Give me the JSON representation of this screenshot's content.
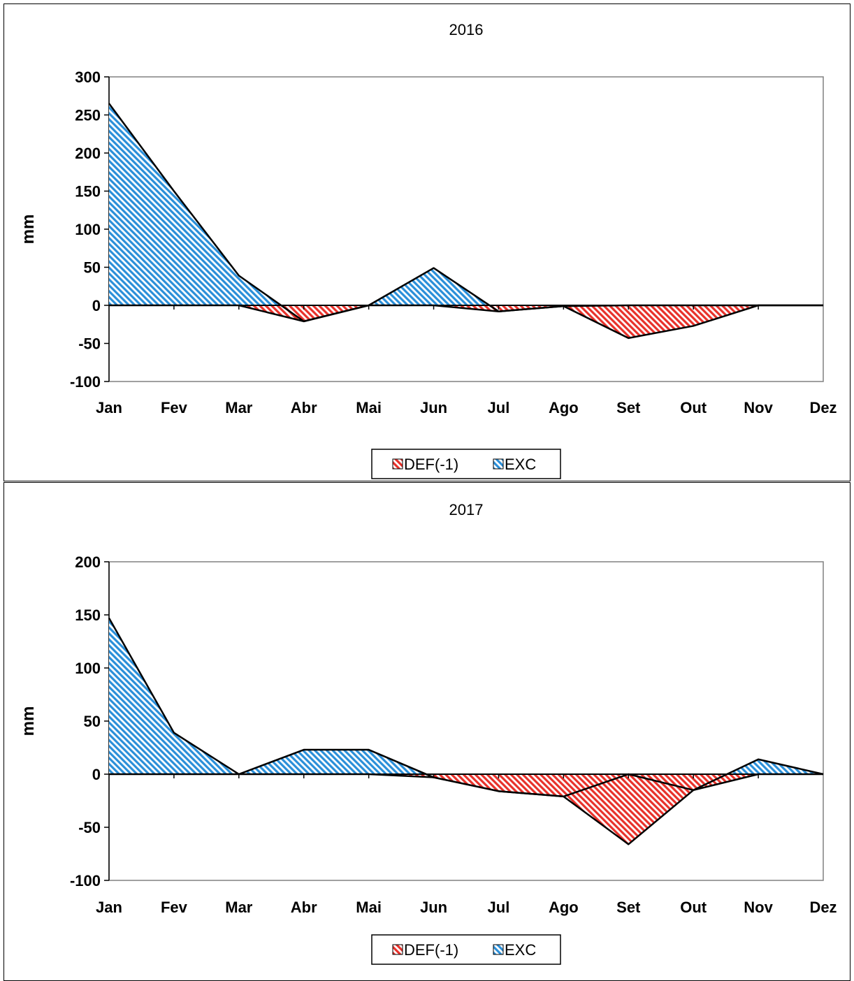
{
  "colors": {
    "def_fill": "#e8312a",
    "exc_fill": "#2a8fd9",
    "axis": "#000000",
    "plot_border": "#808080"
  },
  "chart_data": [
    {
      "type": "area",
      "title": "2016",
      "xlabel": "",
      "ylabel": "mm",
      "categories": [
        "Jan",
        "Fev",
        "Mar",
        "Abr",
        "Mai",
        "Jun",
        "Jul",
        "Ago",
        "Set",
        "Out",
        "Nov",
        "Dez"
      ],
      "ylim": [
        -100,
        300
      ],
      "yticks": [
        300,
        250,
        200,
        150,
        100,
        50,
        0,
        -50,
        -100
      ],
      "ytick_labels": [
        "300",
        "250",
        "200",
        "150",
        "100",
        "50",
        "0",
        "-50",
        "-100"
      ],
      "series": [
        {
          "name": "DEF(-1)",
          "pattern": "diagonal-hatch",
          "color": "#e8312a",
          "values": [
            0,
            0,
            0,
            -21,
            0,
            0,
            -8,
            -1,
            -43,
            -27,
            0,
            0
          ]
        },
        {
          "name": "EXC",
          "pattern": "diagonal-hatch",
          "color": "#2a8fd9",
          "values": [
            265,
            150,
            39,
            -21,
            0,
            49,
            -8,
            -1,
            0,
            0,
            0,
            0
          ]
        }
      ],
      "legend": {
        "position": "bottom",
        "items": [
          "DEF(-1)",
          "EXC"
        ]
      },
      "grid": false
    },
    {
      "type": "area",
      "title": "2017",
      "xlabel": "",
      "ylabel": "mm",
      "categories": [
        "Jan",
        "Fev",
        "Mar",
        "Abr",
        "Mai",
        "Jun",
        "Jul",
        "Ago",
        "Set",
        "Out",
        "Nov",
        "Dez"
      ],
      "ylim": [
        -100,
        200
      ],
      "yticks": [
        200,
        150,
        100,
        50,
        0,
        -50,
        -100
      ],
      "ytick_labels": [
        "200",
        "150",
        "100",
        "50",
        "0",
        "-50",
        "-100"
      ],
      "series": [
        {
          "name": "DEF(-1)",
          "pattern": "diagonal-hatch",
          "color": "#e8312a",
          "values": [
            0,
            0,
            0,
            0,
            0,
            -3,
            -16,
            -21,
            -66,
            -15,
            0,
            0
          ]
        },
        {
          "name": "EXC",
          "pattern": "diagonal-hatch",
          "color": "#2a8fd9",
          "values": [
            147,
            39,
            0,
            23,
            23,
            -3,
            -16,
            -21,
            0,
            -15,
            14,
            0
          ]
        }
      ],
      "legend": {
        "position": "bottom",
        "items": [
          "DEF(-1)",
          "EXC"
        ]
      },
      "grid": false
    }
  ]
}
